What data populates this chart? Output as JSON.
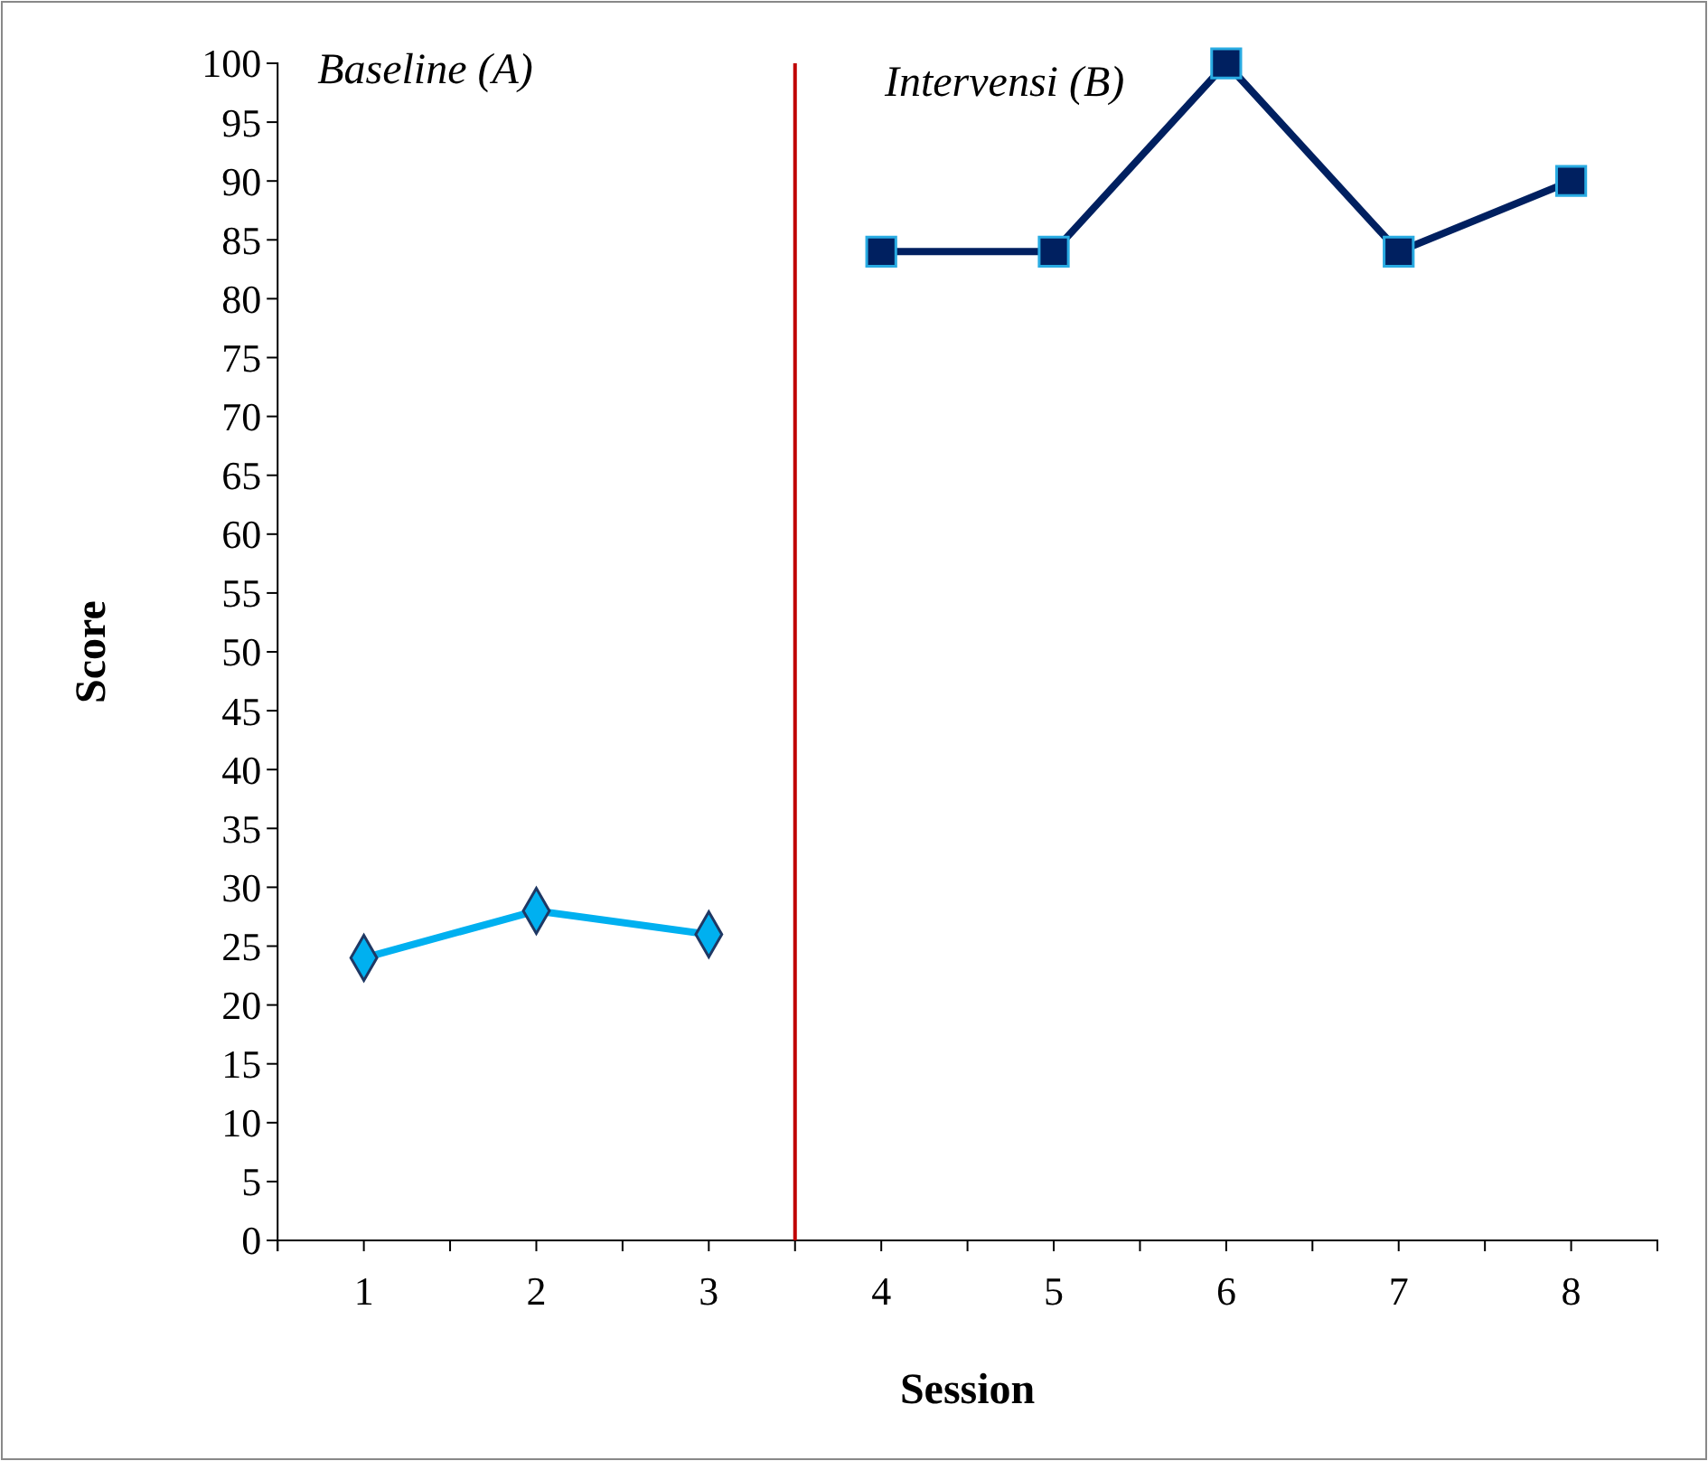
{
  "chart_data": {
    "type": "line",
    "xlabel": "Session",
    "ylabel": "Score",
    "x": [
      1,
      2,
      3,
      4,
      5,
      6,
      7,
      8
    ],
    "xlim": [
      0.5,
      8.5
    ],
    "xticks": [
      {
        "value": 0.5,
        "label": null
      },
      1,
      {
        "value": 1.5,
        "label": null
      },
      2,
      {
        "value": 2.5,
        "label": null
      },
      3,
      {
        "value": 3.5,
        "label": null
      },
      4,
      {
        "value": 4.5,
        "label": null
      },
      5,
      {
        "value": 5.5,
        "label": null
      },
      6,
      {
        "value": 6.5,
        "label": null
      },
      7,
      {
        "value": 7.5,
        "label": null
      },
      8,
      {
        "value": 8.5,
        "label": null
      }
    ],
    "ylim": [
      0,
      100
    ],
    "yticks": [
      0,
      5,
      10,
      15,
      20,
      25,
      30,
      35,
      40,
      45,
      50,
      55,
      60,
      65,
      70,
      75,
      80,
      85,
      90,
      95,
      100
    ],
    "series": [
      {
        "color": "#00b0f0",
        "marker": "diamond",
        "values": [
          24,
          28,
          26,
          null,
          null,
          null,
          null,
          null
        ]
      },
      {
        "color": "#002060",
        "marker": "square",
        "values": [
          null,
          null,
          null,
          84,
          84,
          100,
          84,
          90
        ]
      }
    ],
    "ref_lines": [
      {
        "axis": "x",
        "value": 3.5,
        "color": "#c00000"
      }
    ],
    "annotations": [
      "Baseline (A)",
      "Intervensi (B)"
    ],
    "grid": false
  }
}
